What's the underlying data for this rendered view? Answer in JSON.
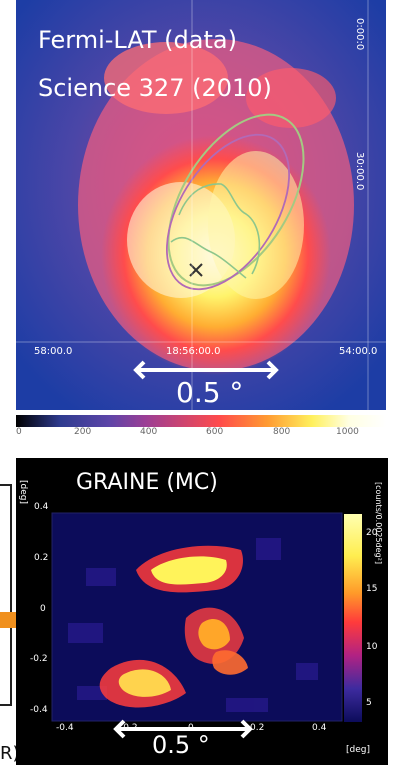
{
  "top_panel": {
    "label_line1": "Fermi-LAT (data)",
    "label_line2": "Science 327 (2010)",
    "ra_ticks": [
      "58:00.0",
      "18:56:00.0",
      "54:00.0"
    ],
    "dec_ticks": [
      "0:00:0",
      "30:00.0"
    ],
    "scale_label": "0.5 °",
    "colorbar_ticks": [
      "0",
      "200",
      "400",
      "600",
      "800",
      "1000"
    ],
    "colors": {
      "hot": "#ffff80",
      "mid": "#ff4040",
      "cool": "#1f3fa0"
    }
  },
  "bottom_panel": {
    "title": "GRAINE (MC)",
    "y_unit": "[deg]",
    "x_unit": "[deg]",
    "y_ticks": [
      "0.4",
      "0.2",
      "0",
      "-0.2",
      "-0.4"
    ],
    "x_ticks": [
      "-0.4",
      "-0.2",
      "0",
      "0.2",
      "0.4"
    ],
    "colorbar_ticks": [
      "20",
      "15",
      "10",
      "5"
    ],
    "colorbar_unit": "[counts/0.0025deg²]",
    "scale_label": "0.5 °",
    "colors": {
      "bg": "#000000",
      "map": "#0c0c5a",
      "hot": "#ffff60"
    }
  },
  "left_fragment": {
    "text": "R)"
  },
  "arrow": {
    "color": "#f0901e"
  }
}
